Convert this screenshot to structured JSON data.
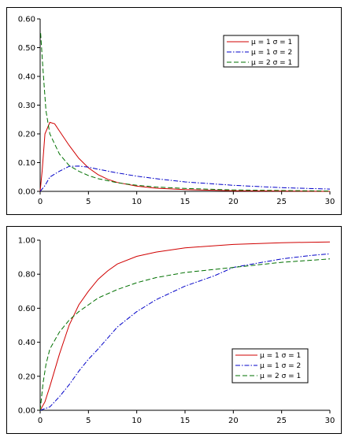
{
  "chart_data": [
    {
      "type": "line",
      "title": "",
      "xlabel": "",
      "ylabel": "",
      "xlim": [
        0,
        30
      ],
      "ylim": [
        0,
        0.6
      ],
      "x_ticks": [
        "0",
        "5",
        "10",
        "15",
        "20",
        "25",
        "30"
      ],
      "y_ticks": [
        "0.00",
        "0.10",
        "0.20",
        "0.30",
        "0.40",
        "0.50",
        "0.60"
      ],
      "legend_position": "top-right",
      "grid": false,
      "series": [
        {
          "name": "μ = 1  σ = 1",
          "color": "#d00000",
          "dash": "solid",
          "points": [
            [
              0,
              0
            ],
            [
              0.2,
              0.07
            ],
            [
              0.5,
              0.2
            ],
            [
              1,
              0.24
            ],
            [
              1.5,
              0.235
            ],
            [
              2,
              0.21
            ],
            [
              3,
              0.16
            ],
            [
              4,
              0.115
            ],
            [
              5,
              0.082
            ],
            [
              6,
              0.058
            ],
            [
              7,
              0.042
            ],
            [
              8,
              0.031
            ],
            [
              10,
              0.018
            ],
            [
              12,
              0.011
            ],
            [
              15,
              0.006
            ],
            [
              20,
              0.002
            ],
            [
              25,
              0.001
            ],
            [
              30,
              0.0
            ]
          ]
        },
        {
          "name": "μ = 1  σ = 2",
          "color": "#0000c8",
          "dash": "dashdot",
          "points": [
            [
              0,
              0
            ],
            [
              0.5,
              0.02
            ],
            [
              1,
              0.05
            ],
            [
              2,
              0.07
            ],
            [
              3,
              0.087
            ],
            [
              4,
              0.088
            ],
            [
              5,
              0.084
            ],
            [
              6,
              0.077
            ],
            [
              8,
              0.064
            ],
            [
              10,
              0.053
            ],
            [
              12,
              0.044
            ],
            [
              15,
              0.033
            ],
            [
              20,
              0.021
            ],
            [
              25,
              0.013
            ],
            [
              30,
              0.008
            ]
          ]
        },
        {
          "name": "μ = 2  σ = 1",
          "color": "#007000",
          "dash": "dash",
          "points": [
            [
              0.05,
              0.55
            ],
            [
              0.3,
              0.42
            ],
            [
              0.6,
              0.28
            ],
            [
              1,
              0.2
            ],
            [
              2,
              0.13
            ],
            [
              3,
              0.09
            ],
            [
              4,
              0.07
            ],
            [
              5,
              0.055
            ],
            [
              6,
              0.044
            ],
            [
              8,
              0.03
            ],
            [
              10,
              0.021
            ],
            [
              12,
              0.015
            ],
            [
              15,
              0.01
            ],
            [
              20,
              0.005
            ],
            [
              25,
              0.003
            ],
            [
              30,
              0.001
            ]
          ]
        }
      ]
    },
    {
      "type": "line",
      "title": "",
      "xlabel": "",
      "ylabel": "",
      "xlim": [
        0,
        30
      ],
      "ylim": [
        0,
        1
      ],
      "x_ticks": [
        "0",
        "5",
        "10",
        "15",
        "20",
        "25",
        "30"
      ],
      "y_ticks": [
        "0.00",
        "0.20",
        "0.40",
        "0.60",
        "0.80",
        "1.00"
      ],
      "legend_position": "bottom-right",
      "grid": false,
      "series": [
        {
          "name": "μ = 1  σ = 1",
          "color": "#d00000",
          "dash": "solid",
          "points": [
            [
              0,
              0
            ],
            [
              0.5,
              0.05
            ],
            [
              1,
              0.14
            ],
            [
              2,
              0.33
            ],
            [
              3,
              0.5
            ],
            [
              4,
              0.62
            ],
            [
              5,
              0.7
            ],
            [
              6,
              0.77
            ],
            [
              7,
              0.82
            ],
            [
              8,
              0.86
            ],
            [
              10,
              0.905
            ],
            [
              12,
              0.93
            ],
            [
              15,
              0.955
            ],
            [
              20,
              0.975
            ],
            [
              25,
              0.985
            ],
            [
              30,
              0.99
            ]
          ]
        },
        {
          "name": "μ = 1  σ = 2",
          "color": "#0000c8",
          "dash": "dashdot",
          "points": [
            [
              0,
              0
            ],
            [
              1,
              0.02
            ],
            [
              2,
              0.08
            ],
            [
              3,
              0.15
            ],
            [
              4,
              0.23
            ],
            [
              5,
              0.3
            ],
            [
              6,
              0.36
            ],
            [
              8,
              0.49
            ],
            [
              10,
              0.58
            ],
            [
              12,
              0.65
            ],
            [
              15,
              0.73
            ],
            [
              18,
              0.79
            ],
            [
              20,
              0.84
            ],
            [
              22,
              0.86
            ],
            [
              25,
              0.89
            ],
            [
              28,
              0.91
            ],
            [
              30,
              0.92
            ]
          ]
        },
        {
          "name": "μ = 2  σ = 1",
          "color": "#007000",
          "dash": "dash",
          "points": [
            [
              0,
              0
            ],
            [
              0.3,
              0.16
            ],
            [
              0.6,
              0.27
            ],
            [
              1,
              0.36
            ],
            [
              2,
              0.46
            ],
            [
              3,
              0.53
            ],
            [
              4,
              0.58
            ],
            [
              5,
              0.62
            ],
            [
              6,
              0.66
            ],
            [
              8,
              0.71
            ],
            [
              10,
              0.75
            ],
            [
              12,
              0.78
            ],
            [
              15,
              0.81
            ],
            [
              20,
              0.84
            ],
            [
              25,
              0.87
            ],
            [
              30,
              0.89
            ]
          ]
        }
      ]
    }
  ]
}
